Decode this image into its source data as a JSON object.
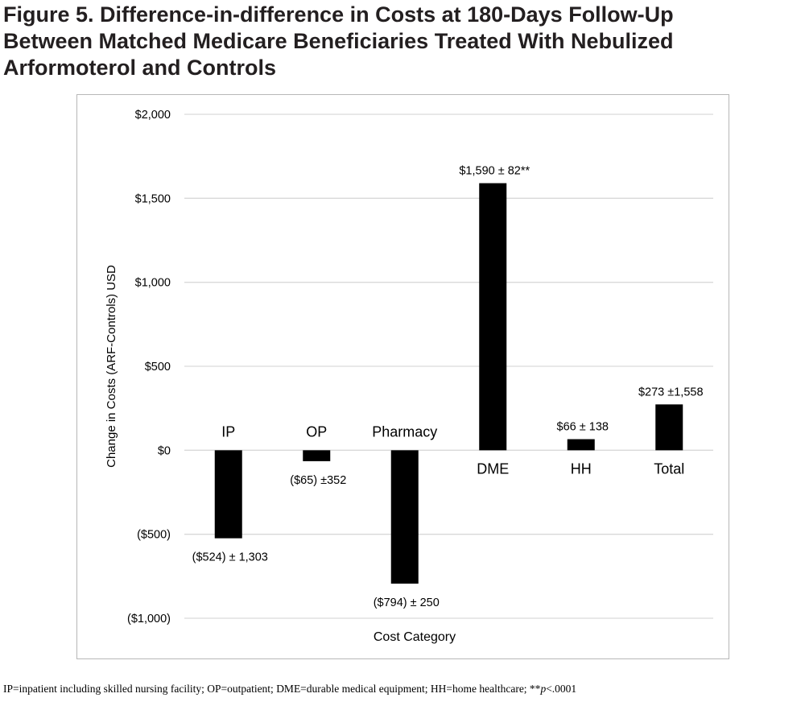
{
  "title_lines": [
    "Figure 5. Difference-in-difference in Costs at 180-Days Follow-Up",
    "Between Matched Medicare Beneficiaries Treated With Nebulized",
    "Arformoterol and Controls"
  ],
  "footnote": {
    "text": "IP=inpatient including skilled nursing facility; OP=outpatient; DME=durable medical equipment; HH=home healthcare; **",
    "p_label": "p",
    "p_value": "<.0001"
  },
  "chart_data": {
    "type": "bar",
    "categories": [
      "IP",
      "OP",
      "Pharmacy",
      "DME",
      "HH",
      "Total"
    ],
    "values": [
      -524,
      -65,
      -794,
      1590,
      66,
      273
    ],
    "data_labels": [
      "($524) ± 1,303",
      "($65) ±352",
      "($794) ± 250",
      "$1,590 ± 82**",
      "$66  ± 138",
      "$273  ±1,558"
    ],
    "xlabel": "Cost Category",
    "ylabel": "Change in Costs (ARF-Controls)  USD",
    "ylim": [
      -1000,
      2000
    ],
    "yticks": [
      2000,
      1500,
      1000,
      500,
      0,
      -500,
      -1000
    ],
    "ytick_labels": [
      "$2,000",
      "$1,500",
      "$1,000",
      "$500",
      "$0",
      "($500)",
      "($1,000)"
    ],
    "grid": true,
    "legend": "none",
    "colors": {
      "bar": "#000000",
      "grid": "#d9d9d9",
      "text": "#000000"
    }
  }
}
